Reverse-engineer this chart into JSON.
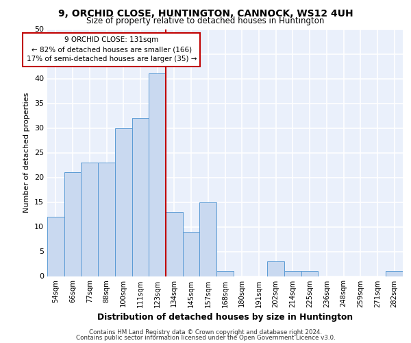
{
  "title1": "9, ORCHID CLOSE, HUNTINGTON, CANNOCK, WS12 4UH",
  "title2": "Size of property relative to detached houses in Huntington",
  "xlabel": "Distribution of detached houses by size in Huntington",
  "ylabel": "Number of detached properties",
  "categories": [
    "54sqm",
    "66sqm",
    "77sqm",
    "88sqm",
    "100sqm",
    "111sqm",
    "123sqm",
    "134sqm",
    "145sqm",
    "157sqm",
    "168sqm",
    "180sqm",
    "191sqm",
    "202sqm",
    "214sqm",
    "225sqm",
    "236sqm",
    "248sqm",
    "259sqm",
    "271sqm",
    "282sqm"
  ],
  "values": [
    12,
    21,
    23,
    23,
    30,
    32,
    41,
    13,
    9,
    15,
    1,
    0,
    0,
    3,
    1,
    1,
    0,
    0,
    0,
    0,
    1
  ],
  "bar_color": "#c9d9f0",
  "bar_edge_color": "#5b9bd5",
  "background_color": "#eaf0fb",
  "grid_color": "#ffffff",
  "annotation_line1": "9 ORCHID CLOSE: 131sqm",
  "annotation_line2": "← 82% of detached houses are smaller (166)",
  "annotation_line3": "17% of semi-detached houses are larger (35) →",
  "vline_color": "#c00000",
  "annotation_box_edge": "#c00000",
  "footer_line1": "Contains HM Land Registry data © Crown copyright and database right 2024.",
  "footer_line2": "Contains public sector information licensed under the Open Government Licence v3.0.",
  "ylim": [
    0,
    50
  ],
  "yticks": [
    0,
    5,
    10,
    15,
    20,
    25,
    30,
    35,
    40,
    45,
    50
  ]
}
